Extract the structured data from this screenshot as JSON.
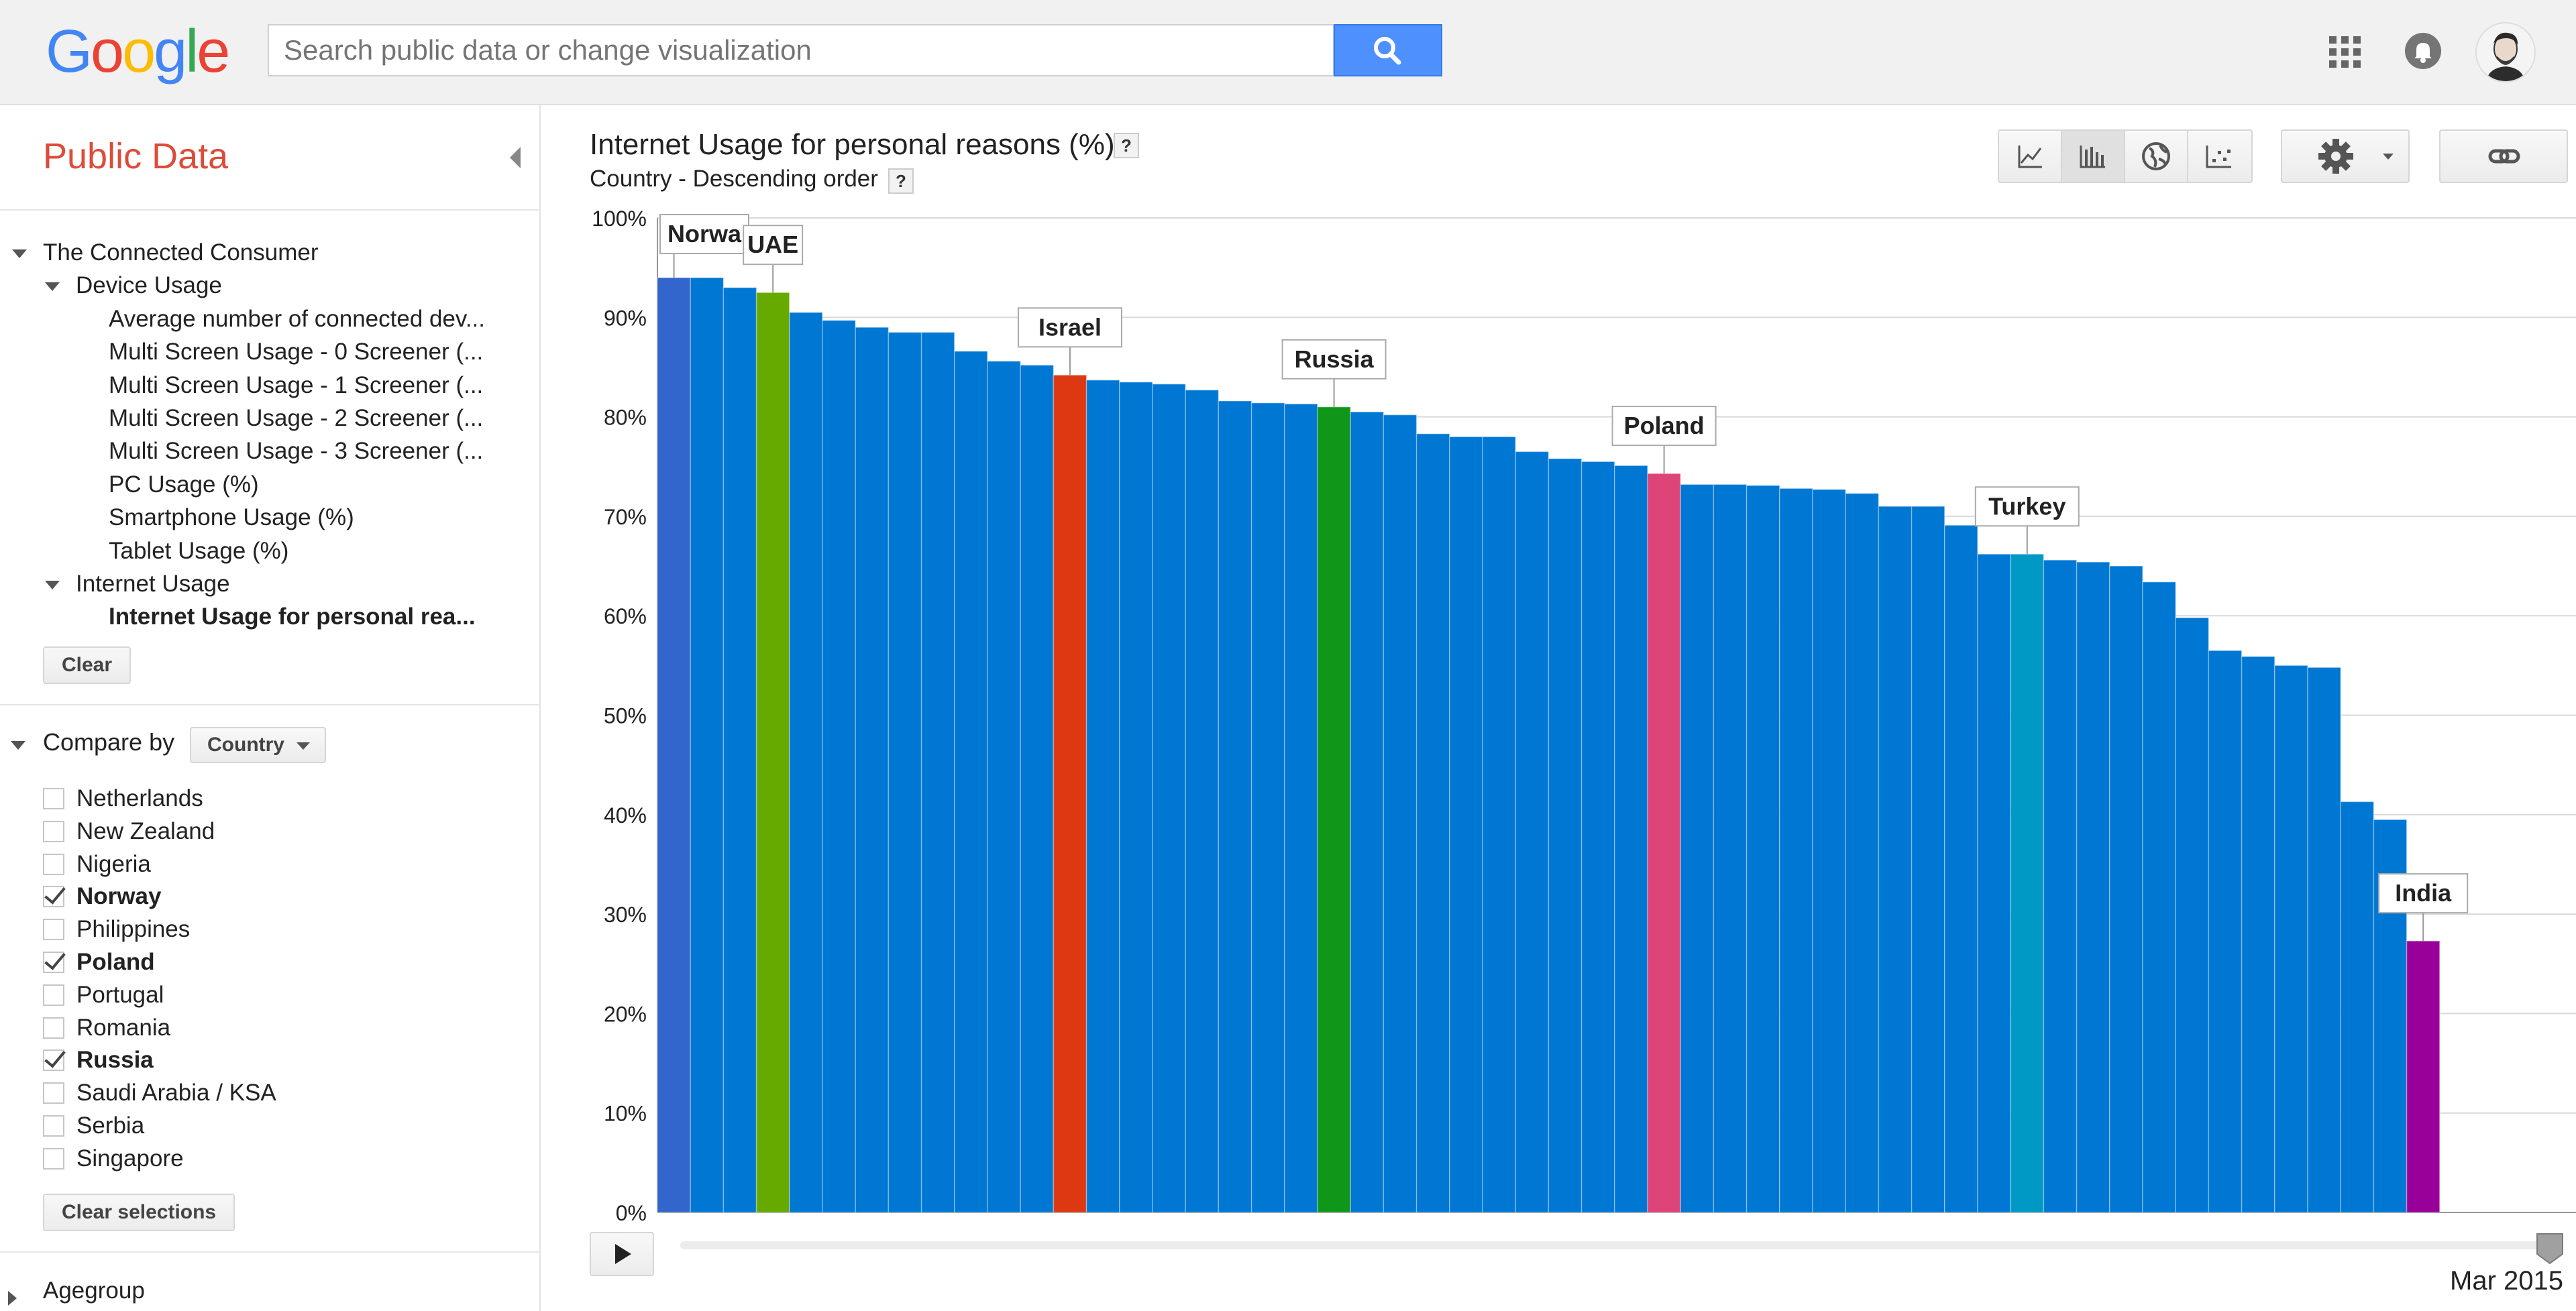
{
  "header": {
    "logo": [
      "G",
      "o",
      "o",
      "g",
      "l",
      "e"
    ],
    "logo_colors": [
      "#4285f4",
      "#ea4335",
      "#fbbc05",
      "#4285f4",
      "#34a853",
      "#ea4335"
    ],
    "search_placeholder": "Search public data or change visualization"
  },
  "sidebar": {
    "title": "Public Data",
    "tree": [
      {
        "label": "The Connected Consumer",
        "level": 0,
        "expanded": true
      },
      {
        "label": "Device Usage",
        "level": 1,
        "expanded": true
      },
      {
        "label": "Average number of connected dev...",
        "level": 2
      },
      {
        "label": "Multi Screen Usage - 0 Screener (...",
        "level": 2
      },
      {
        "label": "Multi Screen Usage - 1 Screener (...",
        "level": 2
      },
      {
        "label": "Multi Screen Usage - 2 Screener (...",
        "level": 2
      },
      {
        "label": "Multi Screen Usage - 3 Screener (...",
        "level": 2
      },
      {
        "label": "PC Usage (%)",
        "level": 2
      },
      {
        "label": "Smartphone Usage (%)",
        "level": 2
      },
      {
        "label": "Tablet Usage (%)",
        "level": 2
      },
      {
        "label": "Internet Usage",
        "level": 1,
        "expanded": true
      },
      {
        "label": "Internet Usage for personal rea...",
        "level": 2,
        "selected": true
      }
    ],
    "clear_label": "Clear",
    "compare_label": "Compare by",
    "compare_value": "Country",
    "countries": [
      {
        "name": "Netherlands",
        "checked": false
      },
      {
        "name": "New Zealand",
        "checked": false
      },
      {
        "name": "Nigeria",
        "checked": false
      },
      {
        "name": "Norway",
        "checked": true
      },
      {
        "name": "Philippines",
        "checked": false
      },
      {
        "name": "Poland",
        "checked": true
      },
      {
        "name": "Portugal",
        "checked": false
      },
      {
        "name": "Romania",
        "checked": false
      },
      {
        "name": "Russia",
        "checked": true
      },
      {
        "name": "Saudi Arabia / KSA",
        "checked": false
      },
      {
        "name": "Serbia",
        "checked": false
      },
      {
        "name": "Singapore",
        "checked": false
      }
    ],
    "clear_selections_label": "Clear selections",
    "agegroup_label": "Agegroup"
  },
  "main": {
    "title": "Internet Usage for personal reasons (%)",
    "subtitle": "Country - Descending order",
    "help_mark": "?",
    "time_label": "Mar 2015"
  },
  "chart_data": {
    "type": "bar",
    "title": "Internet Usage for personal reasons (%)",
    "subtitle": "Country - Descending order",
    "ylim": [
      0,
      100
    ],
    "y_ticks": [
      "0%",
      "10%",
      "20%",
      "30%",
      "40%",
      "50%",
      "60%",
      "70%",
      "80%",
      "90%",
      "100%"
    ],
    "grid": true,
    "base_color": "#0077d3",
    "values": [
      94,
      94,
      93,
      92.5,
      90.5,
      89.7,
      89,
      88.5,
      88.5,
      86.6,
      85.6,
      85.2,
      84.2,
      83.7,
      83.5,
      83.3,
      82.7,
      81.6,
      81.4,
      81.3,
      81,
      80.5,
      80.2,
      78.3,
      78,
      78,
      76.5,
      75.8,
      75.5,
      75.1,
      74.3,
      73.2,
      73.2,
      73.1,
      72.8,
      72.7,
      72.3,
      71,
      71,
      69.1,
      66.2,
      66.2,
      65.6,
      65.4,
      65,
      63.4,
      59.8,
      56.5,
      55.9,
      55,
      54.8,
      41.3,
      39.5,
      27.3
    ],
    "highlights": [
      {
        "index": 0,
        "label": "Norway",
        "display": "Norwa",
        "color": "#3366cc"
      },
      {
        "index": 3,
        "label": "UAE",
        "display": "UAE",
        "color": "#66aa00"
      },
      {
        "index": 12,
        "label": "Israel",
        "display": "Israel",
        "color": "#dc3912"
      },
      {
        "index": 20,
        "label": "Russia",
        "display": "Russia",
        "color": "#109618"
      },
      {
        "index": 30,
        "label": "Poland",
        "display": "Poland",
        "color": "#dd4477"
      },
      {
        "index": 41,
        "label": "Turkey",
        "display": "Turkey",
        "color": "#0099c6"
      },
      {
        "index": 53,
        "label": "India",
        "display": "India",
        "color": "#990099"
      }
    ]
  }
}
